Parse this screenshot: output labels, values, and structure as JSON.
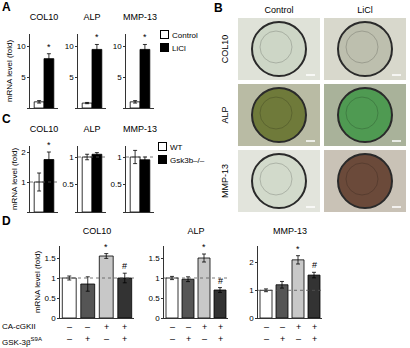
{
  "chart_data": [
    {
      "panel": "A",
      "type": "bar",
      "title": "COL10",
      "y_label": "mRNA level (fold)",
      "legend": "right",
      "categories": [
        null
      ],
      "ylim": [
        0,
        12
      ],
      "yticks": [
        0,
        5,
        10
      ],
      "series": [
        {
          "name": "Control",
          "color": "#ffffff",
          "values": [
            1.0
          ],
          "errors": [
            0.2
          ]
        },
        {
          "name": "LiCl",
          "color": "#000000",
          "values": [
            8.0
          ],
          "errors": [
            0.8
          ],
          "annotations": [
            "*"
          ]
        }
      ]
    },
    {
      "panel": "A",
      "type": "bar",
      "title": "ALP",
      "categories": [
        null
      ],
      "ylim": [
        0,
        12
      ],
      "yticks": [
        0,
        5,
        10
      ],
      "series": [
        {
          "name": "Control",
          "color": "#ffffff",
          "values": [
            0.8
          ],
          "errors": [
            0.1
          ]
        },
        {
          "name": "LiCl",
          "color": "#000000",
          "values": [
            9.5
          ],
          "errors": [
            0.8
          ],
          "annotations": [
            "*"
          ]
        }
      ]
    },
    {
      "panel": "A",
      "type": "bar",
      "title": "MMP-13",
      "categories": [
        null
      ],
      "ylim": [
        0,
        12
      ],
      "yticks": [
        0,
        5,
        10
      ],
      "series": [
        {
          "name": "Control",
          "color": "#ffffff",
          "values": [
            1.0
          ],
          "errors": [
            0.2
          ]
        },
        {
          "name": "LiCl",
          "color": "#000000",
          "values": [
            9.5
          ],
          "errors": [
            0.8
          ],
          "annotations": [
            "*"
          ]
        }
      ]
    },
    {
      "panel": "C",
      "type": "bar",
      "title": "COL10",
      "y_label": "mRNA level (fold)",
      "legend": "right",
      "baseline": 1,
      "categories": [
        null
      ],
      "ylim": [
        0,
        2.2
      ],
      "yticks": [
        0,
        1,
        2
      ],
      "series": [
        {
          "name": "WT",
          "color": "#ffffff",
          "values": [
            1.0
          ],
          "errors": [
            0.3
          ]
        },
        {
          "name": "Gsk3b–/–",
          "color": "#000000",
          "values": [
            1.75
          ],
          "errors": [
            0.25
          ],
          "annotations": [
            "*"
          ]
        }
      ]
    },
    {
      "panel": "C",
      "type": "bar",
      "title": "ALP",
      "baseline": 1,
      "categories": [
        null
      ],
      "ylim": [
        0,
        1.2
      ],
      "yticks": [
        0,
        0.5,
        1
      ],
      "series": [
        {
          "name": "WT",
          "color": "#ffffff",
          "values": [
            1.0
          ],
          "errors": [
            0.05
          ]
        },
        {
          "name": "Gsk3b–/–",
          "color": "#000000",
          "values": [
            1.05
          ],
          "errors": [
            0.03
          ]
        }
      ]
    },
    {
      "panel": "C",
      "type": "bar",
      "title": "MMP-13",
      "baseline": 1,
      "categories": [
        null
      ],
      "ylim": [
        0,
        1.2
      ],
      "yticks": [
        0,
        0.5,
        1
      ],
      "series": [
        {
          "name": "WT",
          "color": "#ffffff",
          "values": [
            1.0
          ],
          "errors": [
            0.12
          ]
        },
        {
          "name": "Gsk3b–/–",
          "color": "#000000",
          "values": [
            0.95
          ],
          "errors": [
            0.05
          ]
        }
      ]
    },
    {
      "panel": "D",
      "type": "bar",
      "title": "COL10",
      "y_label": "mRNA level (fold)",
      "baseline": 1,
      "categories": [
        null,
        null,
        null,
        null
      ],
      "ylim": [
        0,
        1.8
      ],
      "yticks": [
        0,
        0.5,
        1,
        1.5
      ],
      "values": [
        1.0,
        0.85,
        1.55,
        1.0
      ],
      "errors": [
        0.05,
        0.18,
        0.06,
        0.12
      ],
      "colors": [
        "#ffffff",
        "#555555",
        "#c8c8c8",
        "#333333"
      ],
      "annotations": [
        null,
        null,
        "*",
        "#"
      ],
      "conditions": [
        {
          "label": "CA-cGKII",
          "values": [
            "–",
            "–",
            "+",
            "+"
          ]
        },
        {
          "label": "GSK-3β",
          "superscript": "S9A",
          "values": [
            "–",
            "+",
            "–",
            "+"
          ]
        }
      ]
    },
    {
      "panel": "D",
      "type": "bar",
      "title": "ALP",
      "baseline": 1,
      "categories": [
        null,
        null,
        null,
        null
      ],
      "ylim": [
        0,
        1.8
      ],
      "yticks": [
        0,
        0.5,
        1,
        1.5
      ],
      "values": [
        1.0,
        0.97,
        1.5,
        0.7
      ],
      "errors": [
        0.04,
        0.06,
        0.1,
        0.06
      ],
      "colors": [
        "#ffffff",
        "#555555",
        "#c8c8c8",
        "#333333"
      ],
      "annotations": [
        null,
        null,
        "*",
        "#"
      ],
      "conditions": [
        {
          "label": "CA-cGKII",
          "values": [
            "–",
            "–",
            "+",
            "+"
          ]
        },
        {
          "label": "GSK-3β",
          "superscript": "S9A",
          "values": [
            "–",
            "+",
            "–",
            "+"
          ]
        }
      ]
    },
    {
      "panel": "D",
      "type": "bar",
      "title": "MMP-13",
      "baseline": 1,
      "categories": [
        null,
        null,
        null,
        null
      ],
      "ylim": [
        0,
        2.6
      ],
      "yticks": [
        0,
        1,
        2
      ],
      "values": [
        1.0,
        1.2,
        2.1,
        1.55
      ],
      "errors": [
        0.05,
        0.12,
        0.15,
        0.1
      ],
      "colors": [
        "#ffffff",
        "#555555",
        "#c8c8c8",
        "#333333"
      ],
      "annotations": [
        null,
        null,
        "*",
        "#"
      ],
      "conditions": [
        {
          "label": "CA-cGKII",
          "values": [
            "–",
            "–",
            "+",
            "+"
          ]
        },
        {
          "label": "GSK-3β",
          "superscript": "S9A",
          "values": [
            "–",
            "+",
            "–",
            "+"
          ]
        }
      ]
    }
  ],
  "image_panel": {
    "label": "B",
    "columns": [
      "Control",
      "LiCl"
    ],
    "rows": [
      "COL10",
      "ALP",
      "MMP-13"
    ]
  }
}
